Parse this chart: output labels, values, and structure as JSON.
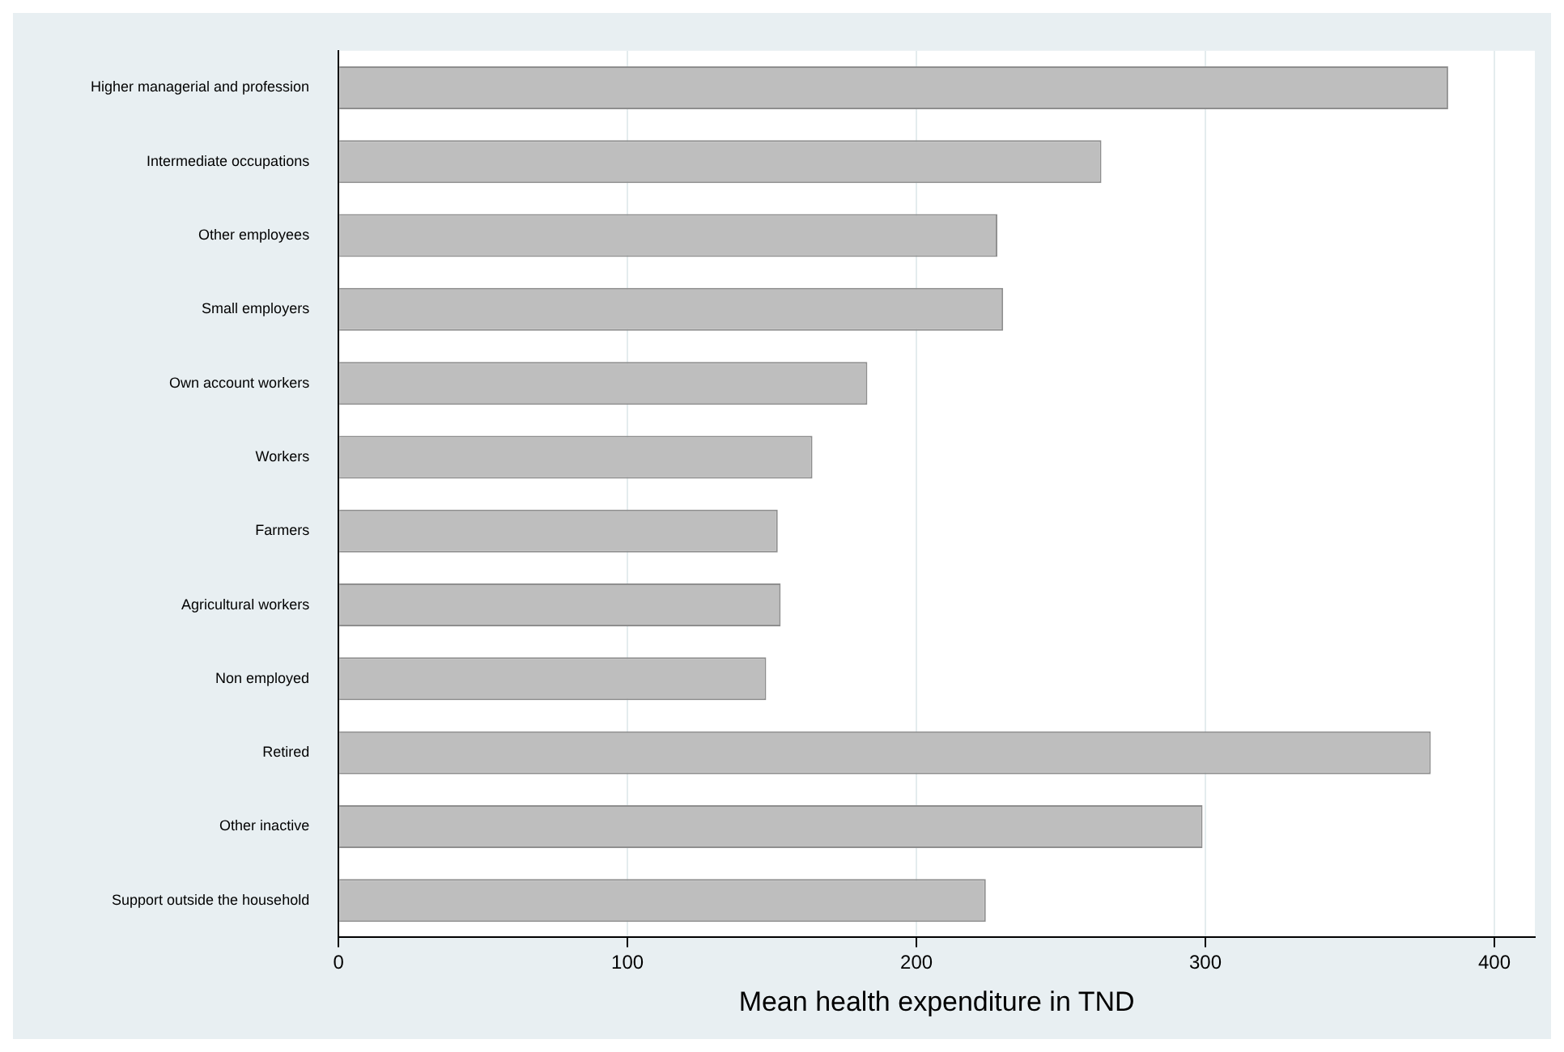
{
  "chart_data": {
    "type": "bar",
    "orientation": "horizontal",
    "xlabel": "Mean health expenditure in TND",
    "categories": [
      "Higher managerial and profession",
      "Intermediate occupations",
      "Other employees",
      "Small employers",
      "Own account workers",
      "Workers",
      "Farmers",
      "Agricultural workers",
      "Non employed",
      "Retired",
      "Other inactive",
      "Support outside the household"
    ],
    "values": [
      384,
      264,
      228,
      230,
      183,
      164,
      152,
      153,
      148,
      378,
      299,
      224
    ],
    "color": "#bebebe",
    "xlim": [
      0,
      414
    ],
    "xticks": [
      0,
      100,
      200,
      300,
      400
    ],
    "grid": "x",
    "legend": false
  }
}
